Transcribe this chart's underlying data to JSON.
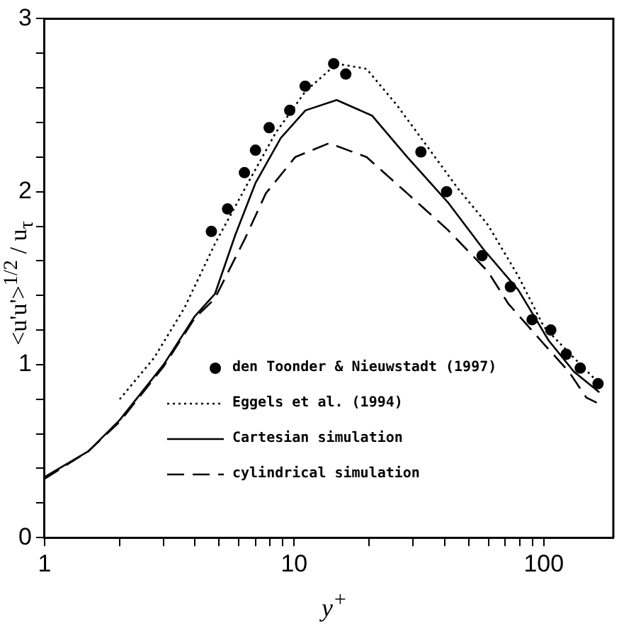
{
  "chart_data": {
    "type": "line",
    "xlabel": "y$^{+}$",
    "ylabel": "<u'u'>$^{1/2}$ / u$_{τ}$",
    "log": "x",
    "xlim": [
      1,
      190
    ],
    "xticks": [
      1,
      {
        "value": 2,
        "label": null
      },
      {
        "value": 3,
        "label": null
      },
      {
        "value": 4,
        "label": null
      },
      {
        "value": 5,
        "label": null
      },
      {
        "value": 6,
        "label": null
      },
      {
        "value": 7,
        "label": null
      },
      {
        "value": 8,
        "label": null
      },
      {
        "value": 9,
        "label": null
      },
      10,
      {
        "value": 20,
        "label": null
      },
      {
        "value": 30,
        "label": null
      },
      {
        "value": 40,
        "label": null
      },
      {
        "value": 50,
        "label": null
      },
      {
        "value": 60,
        "label": null
      },
      {
        "value": 70,
        "label": null
      },
      {
        "value": 80,
        "label": null
      },
      {
        "value": 90,
        "label": null
      },
      100
    ],
    "ylim": [
      0,
      3
    ],
    "yticks": [
      0,
      {
        "value": 0.2,
        "label": null
      },
      {
        "value": 0.4,
        "label": null
      },
      {
        "value": 0.6,
        "label": null
      },
      {
        "value": 0.8,
        "label": null
      },
      1,
      {
        "value": 1.2,
        "label": null
      },
      {
        "value": 1.4,
        "label": null
      },
      {
        "value": 1.6,
        "label": null
      },
      {
        "value": 1.8,
        "label": null
      },
      2,
      {
        "value": 2.2,
        "label": null
      },
      {
        "value": 2.4,
        "label": null
      },
      {
        "value": 2.6,
        "label": null
      },
      {
        "value": 2.8,
        "label": null
      },
      3
    ],
    "grid": false,
    "legend": "bottom",
    "series": [
      {
        "name": "den Toonder & Nieuwstadt (1997)",
        "type": "scatter",
        "marker": "circle",
        "color": "#000000",
        "x": [
          4.66,
          5.41,
          6.32,
          7.0,
          7.94,
          9.6,
          11.07,
          14.4,
          16.1,
          32.2,
          40.8,
          56.6,
          73.5,
          89.8,
          106.7,
          123,
          140,
          165
        ],
        "values": [
          1.77,
          1.9,
          2.11,
          2.24,
          2.37,
          2.47,
          2.61,
          2.74,
          2.68,
          2.23,
          2.0,
          1.63,
          1.45,
          1.26,
          1.2,
          1.06,
          0.98,
          0.89
        ]
      },
      {
        "name": "Eggels et al. (1994)",
        "type": "line",
        "line_style": "dotted",
        "marker": "none",
        "color": "#000000",
        "x": [
          2,
          2.75,
          3.64,
          4.82,
          6.36,
          8.43,
          11.1,
          14.8,
          19.5,
          25.8,
          34.2,
          45.2,
          59.6,
          79.2,
          100,
          132,
          167
        ],
        "values": [
          0.8,
          1.04,
          1.33,
          1.7,
          2.02,
          2.34,
          2.58,
          2.74,
          2.71,
          2.5,
          2.26,
          2.02,
          1.81,
          1.51,
          1.22,
          1.04,
          0.89
        ]
      },
      {
        "name": "Cartesian simulation",
        "type": "line",
        "line_style": "solid",
        "marker": "none",
        "color": "#000000",
        "x": [
          1,
          1.5,
          2,
          3,
          4,
          4.82,
          5.81,
          7.0,
          8.84,
          11.1,
          14.8,
          20.5,
          28.4,
          41.2,
          57.1,
          79.2,
          104.6,
          132,
          167
        ],
        "values": [
          0.35,
          0.5,
          0.68,
          1.0,
          1.28,
          1.41,
          1.75,
          2.05,
          2.31,
          2.47,
          2.53,
          2.44,
          2.2,
          1.94,
          1.67,
          1.43,
          1.14,
          0.96,
          0.84
        ]
      },
      {
        "name": "cylindrical simulation",
        "type": "line",
        "line_style": "dashed",
        "marker": "none",
        "color": "#000000",
        "x": [
          1,
          1.5,
          2,
          3,
          4,
          4.8,
          6.36,
          7.7,
          10.1,
          13.8,
          19.5,
          28.4,
          41.2,
          59.6,
          72.3,
          100,
          126,
          148,
          163
        ],
        "values": [
          0.34,
          0.5,
          0.67,
          0.99,
          1.27,
          1.38,
          1.73,
          1.99,
          2.2,
          2.28,
          2.2,
          1.99,
          1.78,
          1.54,
          1.35,
          1.12,
          0.96,
          0.81,
          0.78
        ]
      }
    ]
  }
}
